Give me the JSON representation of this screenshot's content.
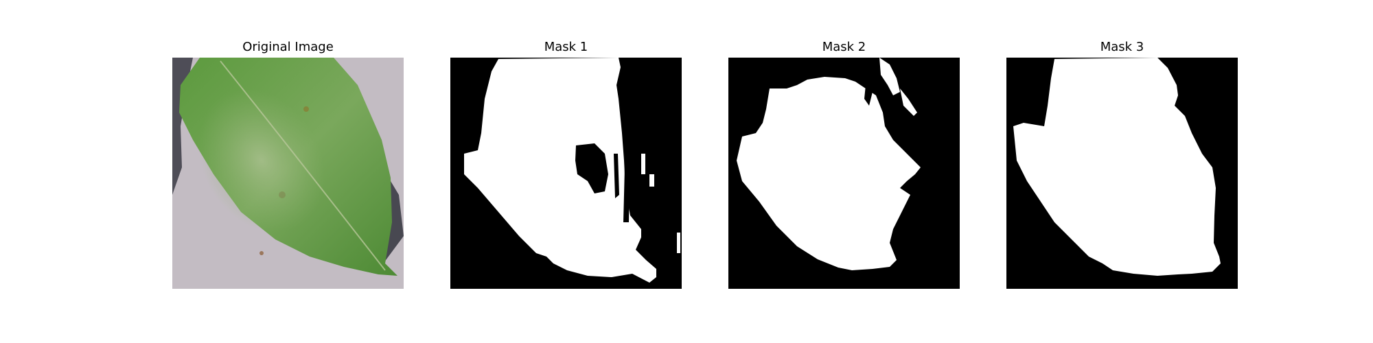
{
  "panels": [
    {
      "title": "Original Image"
    },
    {
      "title": "Mask 1"
    },
    {
      "title": "Mask 2"
    },
    {
      "title": "Mask 3"
    }
  ],
  "colors": {
    "background": "#c3bcc3",
    "leaf_dark": "#4e8a36",
    "leaf_light": "#8db56f",
    "mask_bg": "#000000",
    "mask_fg": "#ffffff"
  },
  "icons": {
    "leaf": "leaf-photo",
    "mask": "segmentation-mask"
  }
}
